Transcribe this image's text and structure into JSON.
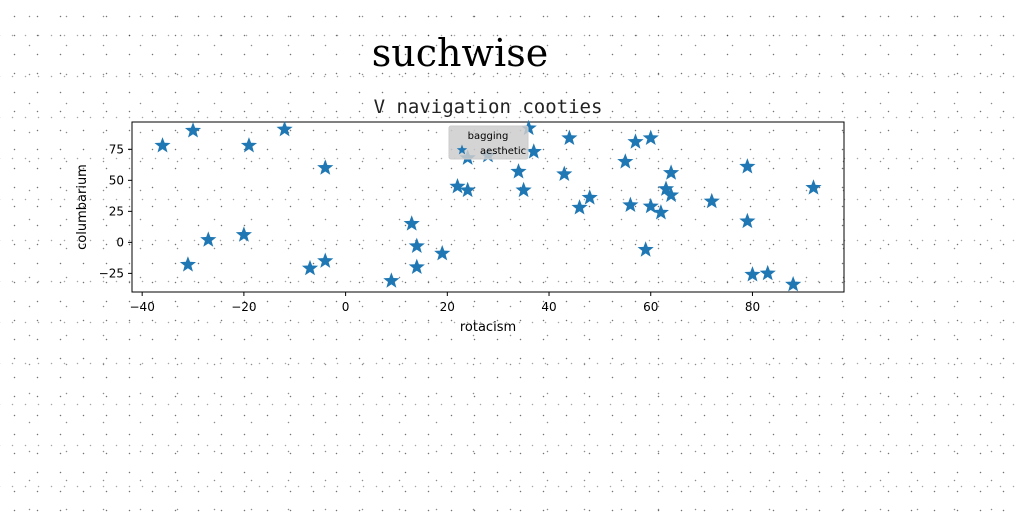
{
  "suptitle": "suchwise",
  "chart_data": {
    "type": "scatter",
    "title": "V navigation cooties",
    "xlabel": "rotacism",
    "ylabel": "columbarium",
    "xlim": [
      -42,
      98
    ],
    "ylim": [
      -40,
      97
    ],
    "xticks": [
      -40,
      -20,
      0,
      20,
      40,
      60,
      80
    ],
    "yticks": [
      -25,
      0,
      25,
      50,
      75
    ],
    "xtick_labels": [
      "−40",
      "−20",
      "0",
      "20",
      "40",
      "60",
      "80"
    ],
    "ytick_labels": [
      "−25",
      "0",
      "25",
      "50",
      "75"
    ],
    "grid": false,
    "legend": {
      "title": "bagging",
      "placement": "top-center",
      "entries": [
        "aesthetic"
      ]
    },
    "marker": "star",
    "color": "#1f77b4",
    "series": [
      {
        "name": "aesthetic",
        "x": [
          -36,
          -30,
          -31,
          -27,
          -20,
          -19,
          -12,
          -7,
          -4,
          -4,
          9,
          13,
          14,
          14,
          19,
          22,
          24,
          24,
          28,
          34,
          35,
          36,
          37,
          43,
          44,
          46,
          48,
          55,
          56,
          57,
          59,
          60,
          60,
          62,
          63,
          64,
          64,
          72,
          79,
          79,
          80,
          83,
          88,
          92
        ],
        "y": [
          78,
          90,
          -18,
          2,
          6,
          78,
          91,
          -21,
          -15,
          60,
          -31,
          15,
          -3,
          -20,
          -9,
          45,
          42,
          68,
          70,
          57,
          42,
          92,
          73,
          55,
          84,
          28,
          36,
          65,
          30,
          81,
          -6,
          29,
          84,
          24,
          43,
          38,
          56,
          33,
          61,
          17,
          -26,
          -25,
          -34,
          44
        ]
      }
    ]
  }
}
